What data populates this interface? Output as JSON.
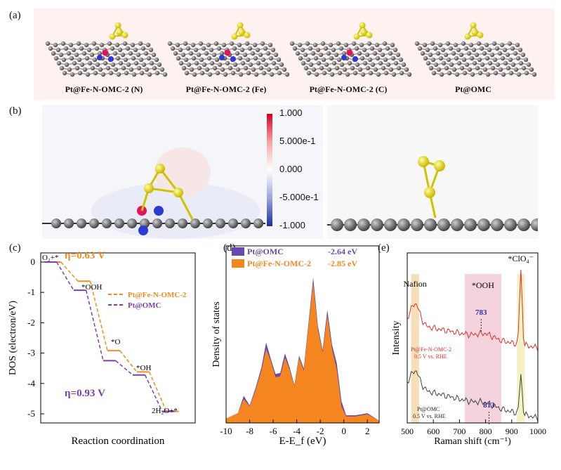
{
  "panel_a": {
    "label": "(a)",
    "structures": [
      {
        "name": "Pt@Fe-N-OMC-2 (N)"
      },
      {
        "name": "Pt@Fe-N-OMC-2 (Fe)"
      },
      {
        "name": "Pt@Fe-N-OMC-2 (C)"
      },
      {
        "name": "Pt@OMC"
      }
    ]
  },
  "panel_b": {
    "label": "(b)",
    "colorbar_ticks": [
      "1.000",
      "5.000e-1",
      "0.000",
      "-5.000e-1",
      "-1.000"
    ]
  },
  "chart_data": [
    {
      "panel": "(c)",
      "type": "line",
      "ylabel": "DOS (electron/eV)",
      "xlabel": "Reaction coordination",
      "ylim": [
        -5.3,
        0.3
      ],
      "yticks": [
        "0",
        "-1",
        "-2",
        "-3",
        "-4",
        "-5"
      ],
      "states": [
        "O₂+*",
        "*OOH",
        "*O",
        "*OH",
        "2H₂O+*"
      ],
      "series": [
        {
          "name": "Pt@Fe-N-OMC-2",
          "color": "#f28c1e",
          "values": [
            0,
            -0.63,
            -2.92,
            -3.62,
            -4.92
          ]
        },
        {
          "name": "Pt@OMC",
          "color": "#7b3fb0",
          "values": [
            0,
            -0.93,
            -3.25,
            -3.72,
            -4.92
          ]
        }
      ],
      "annotations": [
        {
          "text": "η=0.63 V",
          "color": "#f28c1e"
        },
        {
          "text": "η=0.93 V",
          "color": "#7b3fb0"
        }
      ]
    },
    {
      "panel": "(d)",
      "type": "area",
      "ylabel": "Density of states",
      "xlabel": "E-E_f (eV)",
      "xlim": [
        -10,
        3
      ],
      "xticks": [
        -10,
        -8,
        -6,
        -4,
        -2,
        0,
        2
      ],
      "series": [
        {
          "name": "Pt@OMC",
          "center": "-2.64 eV",
          "color": "#6a4aae",
          "x": [
            -10,
            -9,
            -8.5,
            -8,
            -7.5,
            -7,
            -6.6,
            -6.2,
            -5.8,
            -5.4,
            -5,
            -4.6,
            -4.2,
            -3.8,
            -3.4,
            -3,
            -2.6,
            -2.2,
            -1.8,
            -1.4,
            -1,
            -0.6,
            -0.2,
            0.2,
            1,
            2,
            3
          ],
          "values": [
            0.4,
            0.9,
            2.5,
            1.6,
            3.2,
            5.1,
            7.4,
            5.9,
            4.5,
            4.6,
            6.4,
            5.1,
            3.5,
            6.2,
            5.0,
            9.2,
            13.4,
            8.9,
            6.7,
            10.4,
            7.2,
            5.5,
            2.0,
            0.7,
            0.7,
            0.9,
            0.2
          ]
        },
        {
          "name": "Pt@Fe-N-OMC-2",
          "center": "-2.85 eV",
          "color": "#f5861f",
          "x": [
            -10,
            -9,
            -8.5,
            -8,
            -7.5,
            -7,
            -6.6,
            -6.2,
            -5.8,
            -5.4,
            -5,
            -4.6,
            -4.2,
            -3.8,
            -3.4,
            -3,
            -2.6,
            -2.2,
            -1.8,
            -1.4,
            -1,
            -0.6,
            -0.2,
            0.2,
            1,
            2,
            3
          ],
          "values": [
            0.4,
            0.9,
            2.2,
            1.5,
            3.0,
            4.8,
            6.8,
            5.7,
            4.2,
            4.3,
            6.0,
            4.9,
            3.4,
            6.0,
            4.8,
            8.9,
            12.9,
            8.6,
            6.5,
            9.9,
            6.8,
            4.9,
            1.5,
            0.6,
            0.6,
            0.8,
            0.2
          ]
        }
      ]
    },
    {
      "panel": "(e)",
      "type": "line",
      "ylabel": "Intensity",
      "xlabel": "Raman shift (cm⁻¹)",
      "xlim": [
        500,
        1000
      ],
      "xticks": [
        500,
        600,
        700,
        800,
        900,
        1000
      ],
      "series": [
        {
          "name": "Pt@Fe-N-OMC-2\n0.5 V vs. RHE",
          "color": "#d9302c"
        },
        {
          "name": "Pt@OMC\n0.5 V vs. RHE",
          "color": "#444444"
        }
      ],
      "peaks": [
        {
          "label": "783",
          "x": 783
        },
        {
          "label": "813",
          "x": 813
        }
      ],
      "regions": [
        {
          "label": "Nafion",
          "range": [
            515,
            545
          ],
          "color": "#f5deb8"
        },
        {
          "label": "*OOH",
          "range": [
            720,
            860
          ],
          "color": "#f4d3dc"
        },
        {
          "label": "*ClO₄⁻",
          "range": [
            920,
            950
          ],
          "color": "#f4f1c4"
        }
      ]
    }
  ]
}
